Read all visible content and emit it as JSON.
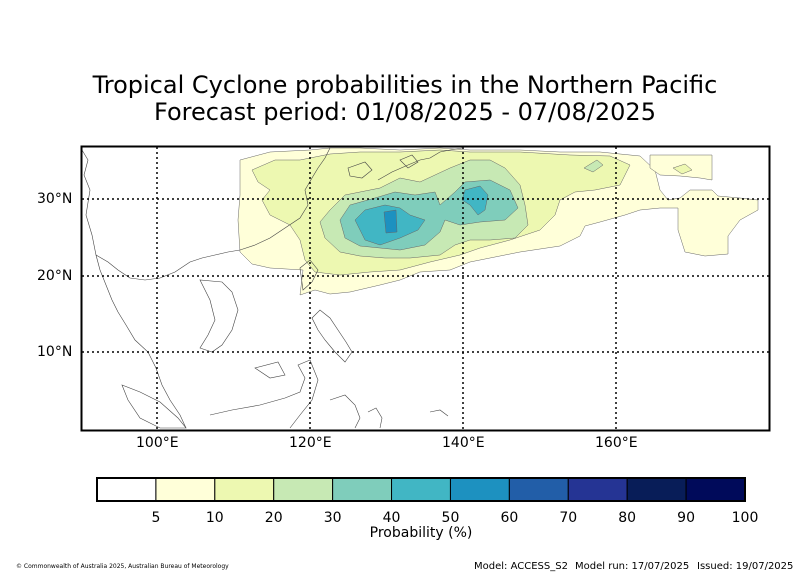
{
  "title": {
    "line1": "Tropical Cyclone probabilities in the Northern Pacific",
    "line2": "Forecast period: 01/08/2025 - 07/08/2025"
  },
  "map": {
    "lon_ticks": [
      "100°E",
      "120°E",
      "140°E",
      "160°E"
    ],
    "lat_ticks": [
      "30°N",
      "20°N",
      "10°N"
    ],
    "region": "Northern Pacific",
    "lon_range": [
      90,
      180
    ],
    "lat_range": [
      0,
      37
    ],
    "gridlines": "dotted"
  },
  "colorbar": {
    "title": "Probability (%)",
    "levels": [
      "5",
      "10",
      "20",
      "30",
      "40",
      "50",
      "60",
      "70",
      "80",
      "90",
      "100"
    ],
    "colors": [
      "#ffffff",
      "#ffffd9",
      "#edf8b1",
      "#c7e9b4",
      "#7fcdbb",
      "#41b6c4",
      "#1d91c0",
      "#225ea8",
      "#253494",
      "#081d58",
      "#000a5a"
    ]
  },
  "footer": {
    "copyright": "© Commonwealth of Australia 2025, Australian Bureau of Meteorology",
    "model": "Model: ACCESS_S2",
    "model_run": "Model run: 17/07/2025",
    "issued": "Issued: 19/07/2025"
  }
}
